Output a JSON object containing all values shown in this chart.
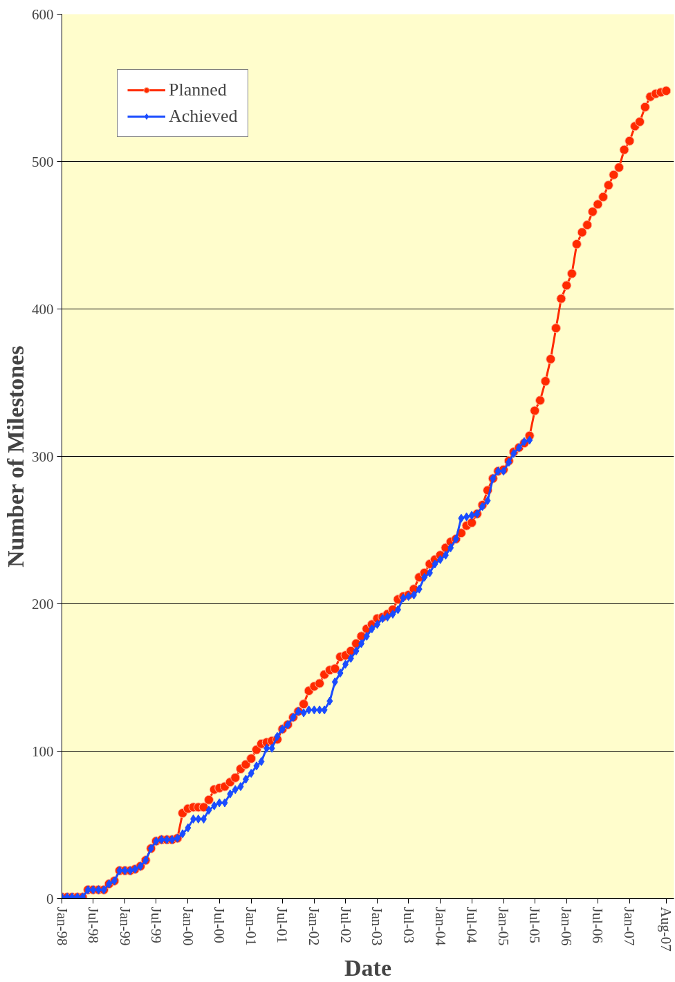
{
  "chart_data": {
    "type": "line",
    "xlabel": "Date",
    "ylabel": "Number of Milestones",
    "x": [
      "1998-01",
      "1998-02",
      "1998-03",
      "1998-04",
      "1998-05",
      "1998-06",
      "1998-07",
      "1998-08",
      "1998-09",
      "1998-10",
      "1998-11",
      "1998-12",
      "1999-01",
      "1999-02",
      "1999-03",
      "1999-04",
      "1999-05",
      "1999-06",
      "1999-07",
      "1999-08",
      "1999-09",
      "1999-10",
      "1999-11",
      "1999-12",
      "2000-01",
      "2000-02",
      "2000-03",
      "2000-04",
      "2000-05",
      "2000-06",
      "2000-07",
      "2000-08",
      "2000-09",
      "2000-10",
      "2000-11",
      "2000-12",
      "2001-01",
      "2001-02",
      "2001-03",
      "2001-04",
      "2001-05",
      "2001-06",
      "2001-07",
      "2001-08",
      "2001-09",
      "2001-10",
      "2001-11",
      "2001-12",
      "2002-01",
      "2002-02",
      "2002-03",
      "2002-04",
      "2002-05",
      "2002-06",
      "2002-07",
      "2002-08",
      "2002-09",
      "2002-10",
      "2002-11",
      "2002-12",
      "2003-01",
      "2003-02",
      "2003-03",
      "2003-04",
      "2003-05",
      "2003-06",
      "2003-07",
      "2003-08",
      "2003-09",
      "2003-10",
      "2003-11",
      "2003-12",
      "2004-01",
      "2004-02",
      "2004-03",
      "2004-04",
      "2004-05",
      "2004-06",
      "2004-07",
      "2004-08",
      "2004-09",
      "2004-10",
      "2004-11",
      "2004-12",
      "2005-01",
      "2005-02",
      "2005-03",
      "2005-04",
      "2005-05",
      "2005-06",
      "2005-07",
      "2005-08",
      "2005-09",
      "2005-10",
      "2005-11",
      "2005-12",
      "2006-01",
      "2006-02",
      "2006-03",
      "2006-04",
      "2006-05",
      "2006-06",
      "2006-07",
      "2006-08",
      "2006-09",
      "2006-10",
      "2006-11",
      "2006-12",
      "2007-01",
      "2007-02",
      "2007-03",
      "2007-04",
      "2007-05",
      "2007-06",
      "2007-07",
      "2007-08"
    ],
    "series": [
      {
        "name": "Planned",
        "color": "#ff2a00",
        "marker": "circle",
        "values": [
          1,
          1,
          1,
          1,
          1,
          6,
          6,
          6,
          6,
          10,
          12,
          19,
          19,
          19,
          20,
          22,
          26,
          34,
          39,
          40,
          40,
          40,
          41,
          58,
          61,
          62,
          62,
          62,
          67,
          74,
          75,
          76,
          79,
          82,
          88,
          91,
          95,
          101,
          105,
          106,
          107,
          108,
          115,
          118,
          123,
          127,
          132,
          141,
          144,
          146,
          152,
          155,
          156,
          164,
          165,
          168,
          173,
          178,
          183,
          186,
          190,
          191,
          193,
          196,
          203,
          205,
          206,
          210,
          218,
          221,
          227,
          230,
          233,
          238,
          242,
          244,
          248,
          253,
          255,
          261,
          267,
          277,
          285,
          290,
          291,
          297,
          303,
          306,
          309,
          314,
          331,
          338,
          351,
          366,
          387,
          407,
          416,
          424,
          444,
          452,
          457,
          466,
          471,
          476,
          484,
          491,
          496,
          508,
          514,
          524,
          527,
          537,
          544,
          546,
          547,
          548
        ]
      },
      {
        "name": "Achieved",
        "color": "#1a4cff",
        "marker": "diamond",
        "values": [
          1,
          1,
          1,
          1,
          1,
          6,
          6,
          6,
          6,
          10,
          12,
          19,
          19,
          19,
          20,
          22,
          26,
          34,
          39,
          40,
          40,
          40,
          41,
          44,
          48,
          54,
          54,
          54,
          60,
          63,
          65,
          65,
          71,
          74,
          76,
          81,
          85,
          90,
          93,
          102,
          102,
          110,
          115,
          118,
          123,
          127,
          126,
          128,
          128,
          128,
          128,
          134,
          147,
          153,
          159,
          163,
          168,
          173,
          178,
          183,
          186,
          190,
          191,
          193,
          196,
          204,
          205,
          206,
          210,
          218,
          221,
          227,
          230,
          233,
          238,
          244,
          258,
          259,
          260,
          261,
          266,
          270,
          285,
          290,
          290,
          296,
          302,
          306,
          310,
          311,
          null,
          null,
          null,
          null,
          null,
          null,
          null,
          null,
          null,
          null,
          null,
          null,
          null,
          null,
          null,
          null,
          null,
          null,
          null,
          null,
          null,
          null,
          null,
          null,
          null,
          null
        ]
      }
    ],
    "xlim": [
      "1998-01",
      "2007-09-15"
    ],
    "xticks": [
      {
        "value": "1998-01",
        "label": "Jan-98"
      },
      {
        "value": "1998-07",
        "label": "Jul-98"
      },
      {
        "value": "1999-01",
        "label": "Jan-99"
      },
      {
        "value": "1999-07",
        "label": "Jul-99"
      },
      {
        "value": "2000-01",
        "label": "Jan-00"
      },
      {
        "value": "2000-07",
        "label": "Jul-00"
      },
      {
        "value": "2001-01",
        "label": "Jan-01"
      },
      {
        "value": "2001-07",
        "label": "Jul-01"
      },
      {
        "value": "2002-01",
        "label": "Jan-02"
      },
      {
        "value": "2002-07",
        "label": "Jul-02"
      },
      {
        "value": "2003-01",
        "label": "Jan-03"
      },
      {
        "value": "2003-07",
        "label": "Jul-03"
      },
      {
        "value": "2004-01",
        "label": "Jan-04"
      },
      {
        "value": "2004-07",
        "label": "Jul-04"
      },
      {
        "value": "2005-01",
        "label": "Jan-05"
      },
      {
        "value": "2005-07",
        "label": "Jul-05"
      },
      {
        "value": "2006-01",
        "label": "Jan-06"
      },
      {
        "value": "2006-07",
        "label": "Jul-06"
      },
      {
        "value": "2007-01",
        "label": "Jan-07"
      },
      {
        "value": "2007-08",
        "label": "Aug-07"
      }
    ],
    "ylim": [
      0,
      600
    ],
    "yticks": [
      0,
      100,
      200,
      300,
      400,
      500,
      600
    ],
    "grid": "y",
    "legend": "top left",
    "line_style": "solid"
  }
}
